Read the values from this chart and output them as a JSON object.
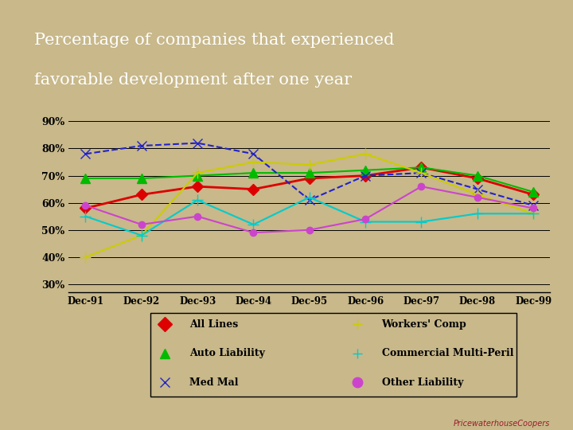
{
  "title_line1": "Percentage of companies that experienced",
  "title_line2": "favorable development after one year",
  "title_bg_color": "#9B1B2A",
  "title_text_color": "#FFFFFF",
  "chart_bg_color": "#C8B88A",
  "x_labels": [
    "Dec-91",
    "Dec-92",
    "Dec-93",
    "Dec-94",
    "Dec-95",
    "Dec-96",
    "Dec-97",
    "Dec-98",
    "Dec-99"
  ],
  "ylim": [
    0.27,
    0.935
  ],
  "yticks": [
    0.3,
    0.4,
    0.5,
    0.6,
    0.7,
    0.8,
    0.9
  ],
  "ytick_labels": [
    "30%",
    "40%",
    "50%",
    "60%",
    "70%",
    "80%",
    "90%"
  ],
  "series": {
    "All Lines": {
      "values": [
        0.58,
        0.63,
        0.66,
        0.65,
        0.69,
        0.7,
        0.73,
        0.69,
        0.63
      ],
      "color": "#DD0000",
      "linestyle": "-",
      "marker": "D",
      "markersize": 7,
      "linewidth": 2.0
    },
    "Auto Liability": {
      "values": [
        0.69,
        0.69,
        0.7,
        0.71,
        0.71,
        0.72,
        0.73,
        0.7,
        0.64
      ],
      "color": "#00BB00",
      "linestyle": "-",
      "marker": "^",
      "markersize": 8,
      "linewidth": 1.5
    },
    "Med Mal": {
      "values": [
        0.78,
        0.81,
        0.82,
        0.78,
        0.61,
        0.7,
        0.71,
        0.65,
        0.59
      ],
      "color": "#2222CC",
      "linestyle": "--",
      "marker": "x",
      "markersize": 9,
      "linewidth": 1.5
    },
    "Workers Comp": {
      "values": [
        0.4,
        0.48,
        0.71,
        0.75,
        0.74,
        0.78,
        0.71,
        0.63,
        0.56
      ],
      "color": "#CCCC00",
      "linestyle": "-",
      "marker": "+",
      "markersize": 10,
      "linewidth": 1.5
    },
    "Commercial Multi-Peril": {
      "values": [
        0.55,
        0.48,
        0.61,
        0.52,
        0.62,
        0.53,
        0.53,
        0.56,
        0.56
      ],
      "color": "#00CCCC",
      "linestyle": "-",
      "marker": "+",
      "markersize": 10,
      "linewidth": 1.5
    },
    "Other Liability": {
      "values": [
        0.59,
        0.52,
        0.55,
        0.49,
        0.5,
        0.54,
        0.66,
        0.62,
        0.58
      ],
      "color": "#CC44CC",
      "linestyle": "-",
      "marker": "o",
      "markersize": 6,
      "linewidth": 1.5
    }
  },
  "legend_labels": [
    "All Lines",
    "Workers' Comp",
    "Auto Liability",
    "Commercial Multi-Peril",
    "Med Mal",
    "Other Liability"
  ],
  "legend_colors": [
    "#DD0000",
    "#CCCC00",
    "#00BB00",
    "#00CCCC",
    "#2222CC",
    "#CC44CC"
  ],
  "legend_markers": [
    "D",
    "+",
    "^",
    "+",
    "x",
    "o"
  ],
  "watermark": "PricewaterhouseCoopers",
  "watermark_color": "#9B1B2A"
}
